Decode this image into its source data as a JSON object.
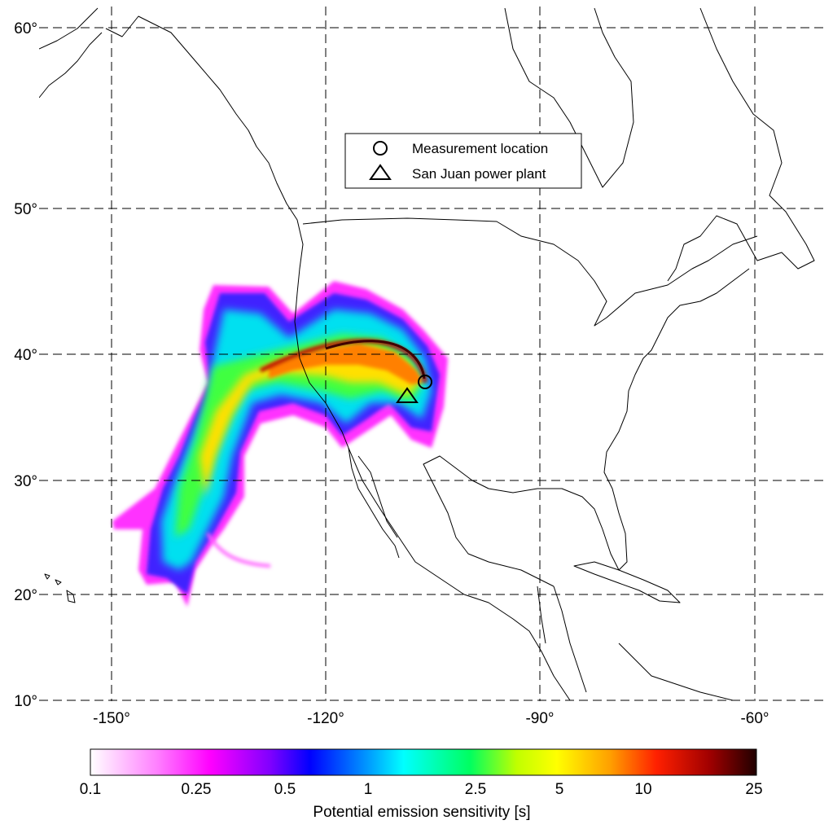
{
  "map": {
    "projection": "equirectangular",
    "lon_range": [
      -157,
      -55
    ],
    "lat_range": [
      10,
      63
    ],
    "lon_gridlines": [
      -150,
      -120,
      -90,
      -60
    ],
    "lat_gridlines": [
      10,
      20,
      30,
      40,
      50,
      60
    ],
    "lon_tick_labels": [
      "-150°",
      "-120°",
      "-90°",
      "-60°"
    ],
    "lat_tick_labels": [
      "10°",
      "20°",
      "30°",
      "40°",
      "50°",
      "60°"
    ],
    "grid": true
  },
  "legend": {
    "position": "top-center",
    "items": [
      {
        "symbol": "circle",
        "label": "Measurement location"
      },
      {
        "symbol": "triangle",
        "label": "San Juan power plant"
      }
    ]
  },
  "markers": [
    {
      "name": "measurement-location",
      "symbol": "circle",
      "lon": -105.3,
      "lat": 37.8
    },
    {
      "name": "san-juan-power-plant",
      "symbol": "triangle",
      "lon": -108.4,
      "lat": 36.7
    }
  ],
  "colorbar": {
    "label": "Potential emission sensitivity [s]",
    "tick_labels": [
      "0.1",
      "0.25",
      "0.5",
      "1",
      "2.5",
      "5",
      "10",
      "25"
    ],
    "tick_values": [
      0.1,
      0.25,
      0.5,
      1,
      2.5,
      5,
      10,
      25
    ],
    "range": [
      0.1,
      25
    ],
    "scale": "log",
    "colors": [
      "#ffffff",
      "#ff00ff",
      "#8000ff",
      "#0000ff",
      "#00ffff",
      "#00ff00",
      "#ffff00",
      "#ff8000",
      "#ff0000",
      "#800000",
      "#200000"
    ]
  }
}
